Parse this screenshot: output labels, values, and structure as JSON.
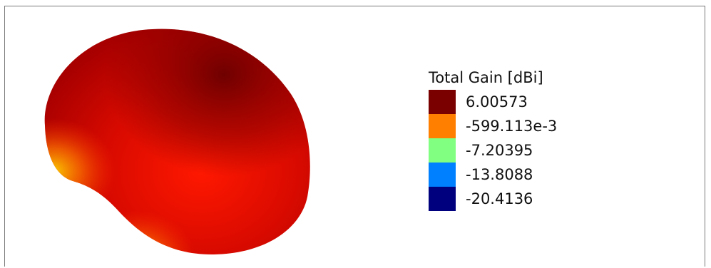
{
  "legend": {
    "title": "Total Gain [dBi]",
    "entries": [
      {
        "label": "6.00573",
        "color": "#7a0000"
      },
      {
        "label": "-599.113e-3",
        "color": "#ff7f00"
      },
      {
        "label": "-7.20395",
        "color": "#80ff80"
      },
      {
        "label": "-13.8088",
        "color": "#0080ff"
      },
      {
        "label": "-20.4136",
        "color": "#00007f"
      }
    ]
  },
  "pattern": {
    "colors": {
      "highlight": "#ff1a00",
      "mid": "#c40000",
      "shadow": "#6e0000",
      "edge_warm": "#ff8c00",
      "edge_yellow": "#ffe600"
    }
  }
}
